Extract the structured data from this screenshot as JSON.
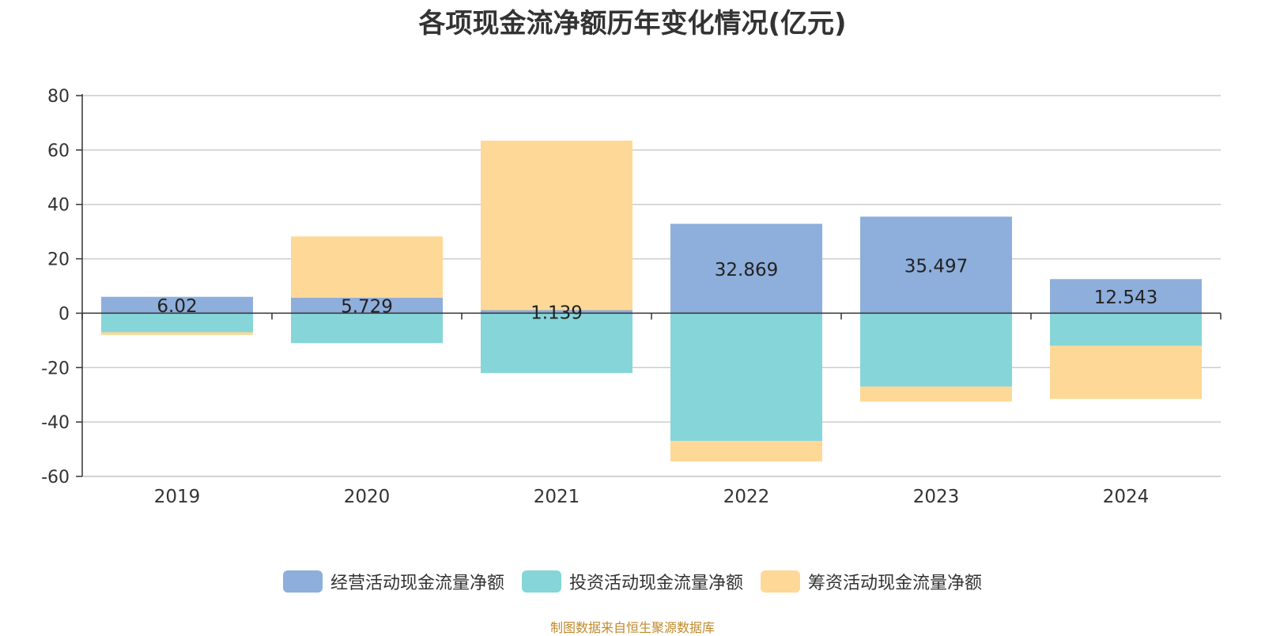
{
  "chart_data": {
    "type": "bar",
    "stacked": true,
    "title": "各项现金流净额历年变化情况(亿元)",
    "xlabel": "",
    "ylabel": "",
    "ylim": [
      -60,
      80
    ],
    "yticks": [
      80,
      60,
      40,
      20,
      0,
      -20,
      -40,
      -60
    ],
    "grid": true,
    "legend_position": "bottom",
    "categories": [
      "2019",
      "2020",
      "2021",
      "2022",
      "2023",
      "2024"
    ],
    "series": [
      {
        "name": "经营活动现金流量净额",
        "color": "#8eaedb",
        "values": [
          6.02,
          5.729,
          1.139,
          32.869,
          35.497,
          12.543
        ],
        "labels": [
          "6.02",
          "5.729",
          "1.139",
          "32.869",
          "35.497",
          "12.543"
        ]
      },
      {
        "name": "投资活动现金流量净额",
        "color": "#86d5d8",
        "values": [
          -7.0,
          -11.0,
          -22.0,
          -47.0,
          -27.0,
          -12.0
        ]
      },
      {
        "name": "筹资活动现金流量净额",
        "color": "#fed897",
        "values": [
          -1.0,
          22.5,
          62.3,
          -7.5,
          -5.5,
          -19.5
        ]
      }
    ]
  },
  "footer": {
    "source": "制图数据来自恒生聚源数据库"
  }
}
